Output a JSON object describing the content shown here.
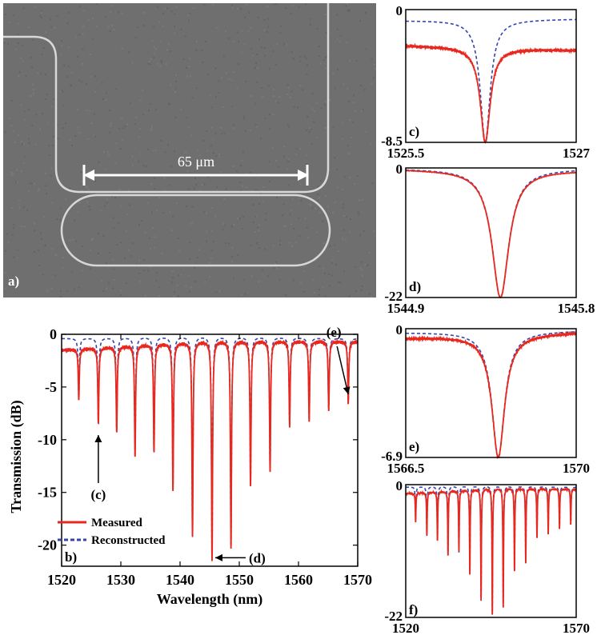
{
  "figure": {
    "panel_a": {
      "label": "a)",
      "scale_text": "65 μm"
    }
  },
  "colors": {
    "measured": "#e8281e",
    "reconstructed": "#3346b0",
    "sem_background": "#6f6f6f",
    "waveguide": "#d8d8d8",
    "annotation": "#ffffff"
  },
  "chart_data": [
    {
      "id": "b",
      "type": "line",
      "panel_label": "b)",
      "xlabel": "Wavelength (nm)",
      "ylabel": "Transmission (dB)",
      "xlim": [
        1520,
        1570
      ],
      "ylim": [
        -22,
        0
      ],
      "xticks": [
        "1520",
        "1530",
        "1540",
        "1550",
        "1560",
        "1570"
      ],
      "yticks": [
        "0",
        "-5",
        "-10",
        "-15",
        "-20"
      ],
      "legend": [
        "Measured",
        "Reconstructed"
      ],
      "legend_position": "bottom-left",
      "series": [
        {
          "name": "Measured",
          "style": "solid",
          "baseline": [
            [
              1520,
              -1.5
            ],
            [
              1545,
              -0.6
            ],
            [
              1570,
              -0.7
            ]
          ],
          "dips": [
            [
              1522.9,
              -6.2
            ],
            [
              1526.2,
              -8.5
            ],
            [
              1529.3,
              -9.3
            ],
            [
              1532.4,
              -11.6
            ],
            [
              1535.6,
              -11.2
            ],
            [
              1538.8,
              -14.8
            ],
            [
              1542.1,
              -19.2
            ],
            [
              1545.4,
              -21.5
            ],
            [
              1548.6,
              -20.3
            ],
            [
              1551.9,
              -14.4
            ],
            [
              1555.2,
              -13.0
            ],
            [
              1558.5,
              -8.7
            ],
            [
              1561.8,
              -8.2
            ],
            [
              1565.1,
              -7.2
            ],
            [
              1568.4,
              -6.6
            ]
          ]
        },
        {
          "name": "Reconstructed",
          "style": "dashed",
          "baseline": [
            [
              1520,
              -0.4
            ],
            [
              1545,
              -0.15
            ],
            [
              1570,
              -0.4
            ]
          ],
          "dips": [
            [
              1522.9,
              -6.2
            ],
            [
              1526.2,
              -8.5
            ],
            [
              1529.3,
              -9.3
            ],
            [
              1532.4,
              -11.6
            ],
            [
              1535.6,
              -11.2
            ],
            [
              1538.8,
              -14.8
            ],
            [
              1542.1,
              -19.2
            ],
            [
              1545.4,
              -21.5
            ],
            [
              1548.6,
              -20.3
            ],
            [
              1551.9,
              -14.4
            ],
            [
              1555.2,
              -13.0
            ],
            [
              1558.5,
              -8.7
            ],
            [
              1561.8,
              -8.2
            ],
            [
              1565.1,
              -7.2
            ],
            [
              1568.4,
              -6.6
            ]
          ]
        }
      ],
      "annotations": [
        {
          "text": "(c)",
          "points_to": [
            1526.2,
            -8.5
          ]
        },
        {
          "text": "(d)",
          "points_to": [
            1545.4,
            -21.5
          ]
        },
        {
          "text": "(e)",
          "points_to": [
            1568.4,
            -6.6
          ]
        }
      ]
    },
    {
      "id": "c",
      "type": "line",
      "panel_label": "c)",
      "xlim": [
        1525.5,
        1527
      ],
      "ylim": [
        -8.5,
        0
      ],
      "xticks": [
        "1525.5",
        "1527"
      ],
      "yticks": [
        "0",
        "-8.5"
      ],
      "dip_center": 1526.2,
      "series": [
        {
          "name": "Measured",
          "style": "solid",
          "baseline": [
            [
              1525.5,
              -2.3
            ],
            [
              1527,
              -2.6
            ]
          ],
          "min": -8.5
        },
        {
          "name": "Reconstructed",
          "style": "dashed",
          "baseline": [
            [
              1525.5,
              -0.7
            ],
            [
              1527,
              -0.6
            ]
          ],
          "min": -8.5
        }
      ]
    },
    {
      "id": "d",
      "type": "line",
      "panel_label": "d)",
      "xlim": [
        1544.9,
        1545.8
      ],
      "ylim": [
        -22,
        0
      ],
      "xticks": [
        "1544.9",
        "1545.8"
      ],
      "yticks": [
        "0",
        "-22"
      ],
      "dip_center": 1545.4,
      "series": [
        {
          "name": "Measured",
          "style": "solid",
          "baseline": [
            [
              1544.9,
              -0.2
            ],
            [
              1545.8,
              -0.4
            ]
          ],
          "min": -22
        },
        {
          "name": "Reconstructed",
          "style": "dashed",
          "baseline": [
            [
              1544.9,
              -0.1
            ],
            [
              1545.8,
              -0.1
            ]
          ],
          "min": -22
        }
      ]
    },
    {
      "id": "e",
      "type": "line",
      "panel_label": "e)",
      "xlim": [
        1566.5,
        1570
      ],
      "ylim": [
        -6.9,
        0
      ],
      "xticks": [
        "1566.5",
        "1570"
      ],
      "yticks": [
        "0",
        "-6.9"
      ],
      "dip_center": 1568.4,
      "series": [
        {
          "name": "Measured",
          "style": "solid",
          "baseline": [
            [
              1566.5,
              -0.5
            ],
            [
              1570,
              -0.2
            ]
          ],
          "min": -6.9
        },
        {
          "name": "Reconstructed",
          "style": "dashed",
          "baseline": [
            [
              1566.5,
              -0.2
            ],
            [
              1570,
              -0.1
            ]
          ],
          "min": -6.9
        }
      ]
    },
    {
      "id": "f",
      "type": "line",
      "panel_label": "f)",
      "xlim": [
        1520,
        1570
      ],
      "ylim": [
        -22,
        0
      ],
      "xticks": [
        "1520",
        "1570"
      ],
      "yticks": [
        "0",
        "-22"
      ],
      "same_as": "b"
    }
  ]
}
